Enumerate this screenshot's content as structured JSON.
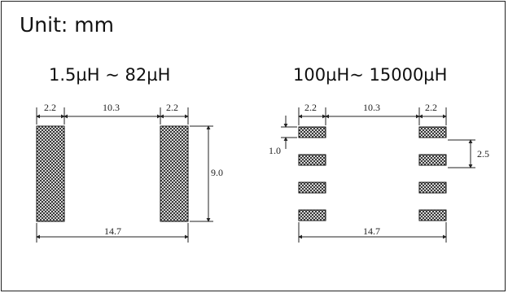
{
  "unit_label": "Unit: mm",
  "left_diagram": {
    "title": "1.5µH ~ 82µH",
    "dims": {
      "pad_width_left": "2.2",
      "gap": "10.3",
      "pad_width_right": "2.2",
      "pad_height": "9.0",
      "overall_width": "14.7"
    }
  },
  "right_diagram": {
    "title": "100µH~ 15000µH",
    "dims": {
      "pad_width_left": "2.2",
      "gap": "10.3",
      "pad_width_right": "2.2",
      "pad_height": "1.0",
      "pitch": "2.5",
      "overall_width": "14.7"
    }
  },
  "colors": {
    "line": "#222222",
    "pad": "#111111"
  }
}
